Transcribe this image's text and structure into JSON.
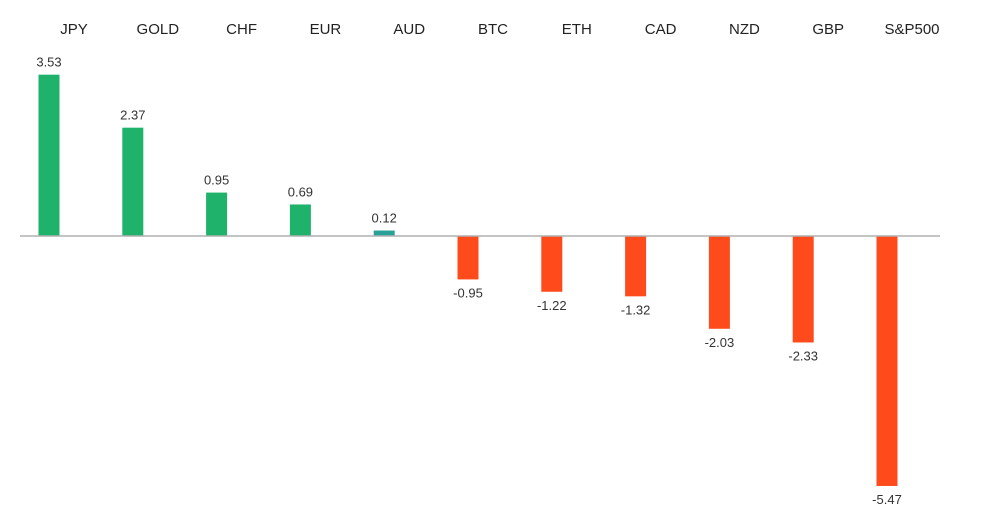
{
  "chart_data": {
    "type": "bar",
    "categories": [
      "JPY",
      "GOLD",
      "CHF",
      "EUR",
      "AUD",
      "BTC",
      "ETH",
      "CAD",
      "NZD",
      "GBP",
      "S&P500"
    ],
    "values": [
      3.53,
      2.37,
      0.95,
      0.69,
      0.12,
      -0.95,
      -1.22,
      -1.32,
      -2.03,
      -2.33,
      -5.47
    ],
    "value_labels": [
      "3.53",
      "2.37",
      "0.95",
      "0.69",
      "0.12",
      "-0.95",
      "-1.22",
      "-1.32",
      "-2.03",
      "-2.33",
      "-5.47"
    ],
    "title": "",
    "xlabel": "",
    "ylabel": "",
    "ylim": [
      -5.47,
      3.53
    ],
    "grid": false,
    "legend": "none",
    "category_labels_position": "top",
    "colors": {
      "positive": "#1fb26b",
      "positive_small": "#2aa198",
      "negative": "#ff4a1c",
      "axis": "#b0b0b0"
    }
  }
}
